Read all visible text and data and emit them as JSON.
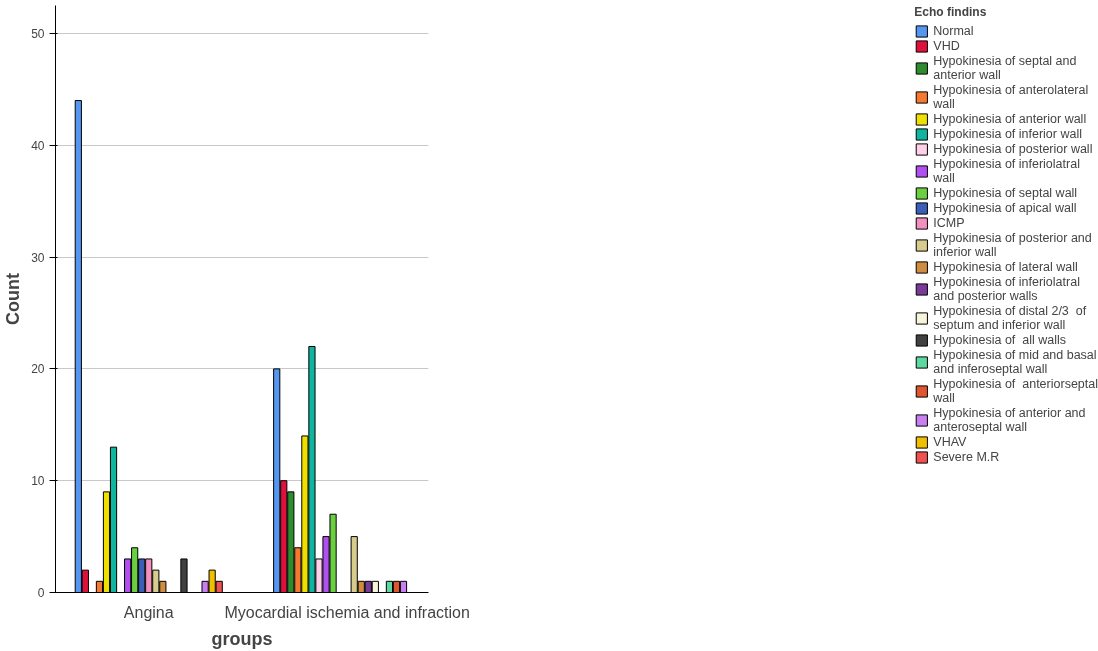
{
  "chart_data": {
    "type": "bar",
    "xlabel": "groups",
    "ylabel": "Count",
    "legend_title": "Echo findins",
    "legend": "right",
    "grid": "y",
    "categories": [
      "Angina",
      "Myocardial ischemia and infraction"
    ],
    "ylim": [
      0,
      52.5
    ],
    "yticks": [
      0,
      10,
      20,
      30,
      40,
      50
    ],
    "series": [
      {
        "name": "Normal",
        "color": "#5597f0",
        "values": [
          44,
          20
        ]
      },
      {
        "name": "VHD",
        "color": "#e0103c",
        "values": [
          2,
          10
        ]
      },
      {
        "name": "Hypokinesia of septal and anterior wall",
        "color": "#2e8b2e",
        "values": [
          null,
          9
        ]
      },
      {
        "name": "Hypokinesia of anterolateral wall",
        "color": "#f57a2f",
        "values": [
          1,
          4
        ]
      },
      {
        "name": "Hypokinesia of anterior wall",
        "color": "#f0e000",
        "values": [
          9,
          14
        ]
      },
      {
        "name": "Hypokinesia of inferior wall",
        "color": "#10b5a0",
        "values": [
          13,
          22
        ]
      },
      {
        "name": "Hypokinesia of posterior wall",
        "color": "#ffd0e8",
        "values": [
          null,
          3
        ]
      },
      {
        "name": "Hypokinesia of inferiolatral wall",
        "color": "#b050f0",
        "values": [
          3,
          5
        ]
      },
      {
        "name": "Hypokinesia of septal wall",
        "color": "#6ad040",
        "values": [
          4,
          7
        ]
      },
      {
        "name": "Hypokinesia of apical wall",
        "color": "#3a5fb8",
        "values": [
          3,
          null
        ]
      },
      {
        "name": "ICMP",
        "color": "#f490c0",
        "values": [
          3,
          null
        ]
      },
      {
        "name": "Hypokinesia of posterior and inferior wall",
        "color": "#d8cc8c",
        "values": [
          2,
          5
        ]
      },
      {
        "name": "Hypokinesia of lateral wall",
        "color": "#d08c40",
        "values": [
          1,
          1
        ]
      },
      {
        "name": "Hypokinesia of inferiolatral and posterior walls",
        "color": "#7a3a9a",
        "values": [
          null,
          1
        ]
      },
      {
        "name": "Hypokinesia of distal 2/3  of septum and inferior wall",
        "color": "#f8f4dc",
        "values": [
          null,
          1
        ]
      },
      {
        "name": "Hypokinesia of  all walls",
        "color": "#404040",
        "values": [
          3,
          null
        ]
      },
      {
        "name": "Hypokinesia of mid and basal and inferoseptal wall",
        "color": "#5cd8a0",
        "values": [
          null,
          1
        ]
      },
      {
        "name": "Hypokinesia of  anteriorseptal wall",
        "color": "#e05530",
        "values": [
          null,
          1
        ]
      },
      {
        "name": "Hypokinesia of anterior and anteroseptal wall",
        "color": "#c880f0",
        "values": [
          1,
          1
        ]
      },
      {
        "name": "VHAV",
        "color": "#f0c000",
        "values": [
          2,
          null
        ]
      },
      {
        "name": "Severe M.R",
        "color": "#f05050",
        "values": [
          1,
          null
        ]
      }
    ]
  }
}
